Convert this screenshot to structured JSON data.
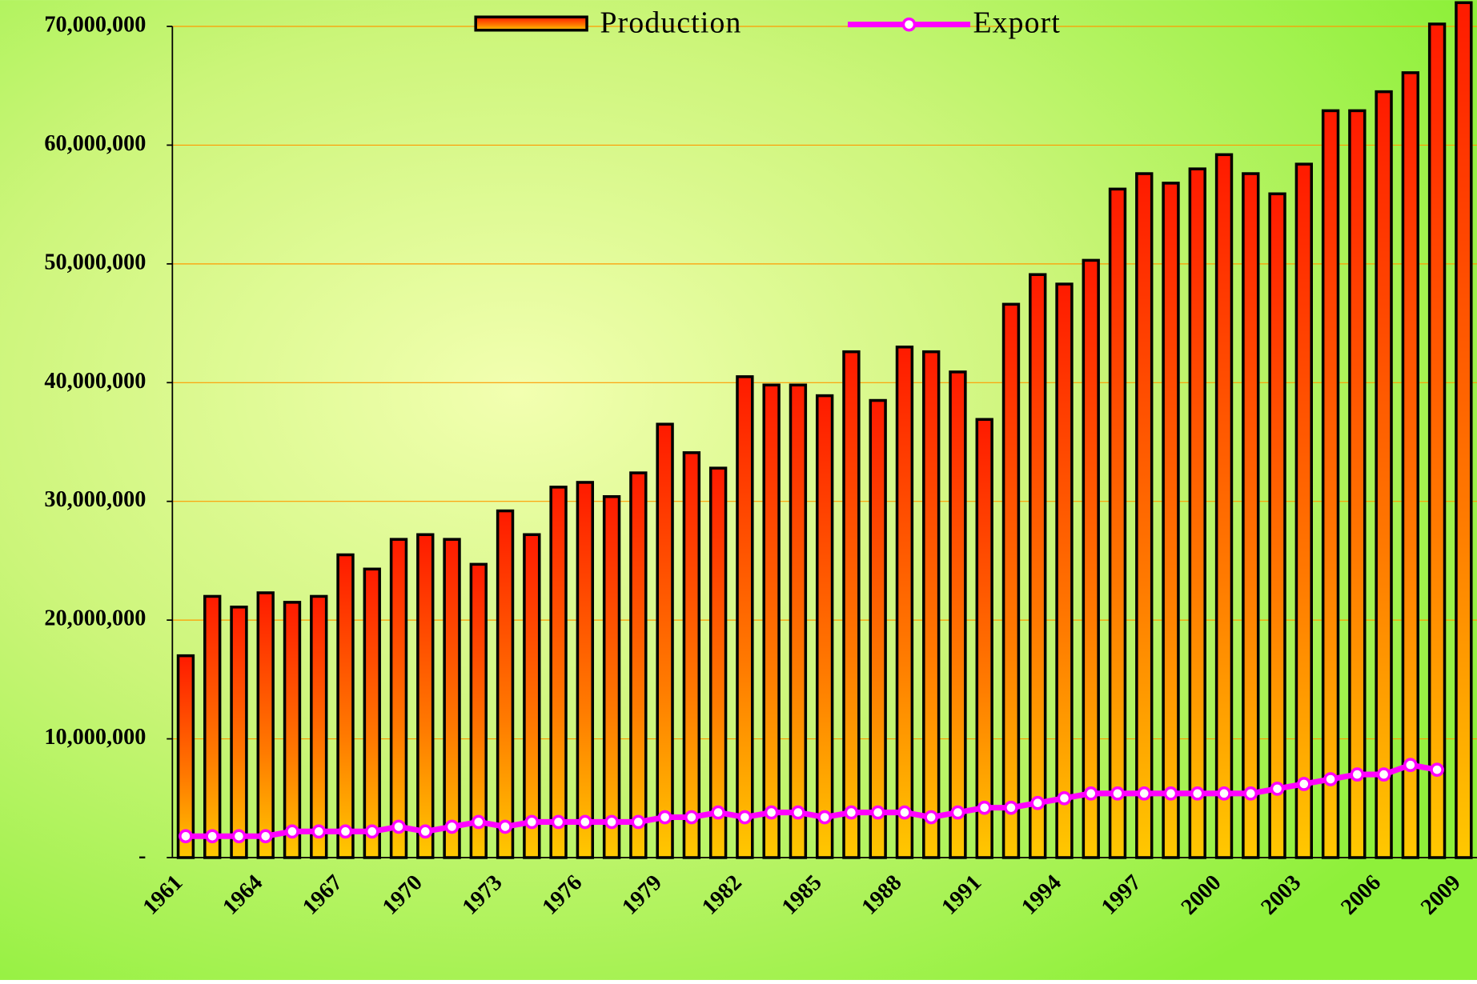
{
  "chart_data": {
    "type": "bar",
    "categories": [
      "1961",
      null,
      null,
      "1964",
      null,
      null,
      "1967",
      null,
      null,
      "1970",
      null,
      null,
      "1973",
      null,
      null,
      "1976",
      null,
      null,
      "1979",
      null,
      null,
      "1982",
      null,
      null,
      "1985",
      null,
      null,
      "1988",
      null,
      null,
      "1991",
      null,
      null,
      "1994",
      null,
      null,
      "1997",
      null,
      null,
      "2000",
      null,
      null,
      "2003",
      null,
      null,
      "2006",
      null,
      null,
      "2009"
    ],
    "series": [
      {
        "name": "Production",
        "type": "bar",
        "color": "#ff2000",
        "values": [
          17000000,
          22000000,
          21100000,
          22300000,
          21500000,
          22000000,
          25500000,
          24300000,
          26800000,
          27200000,
          26800000,
          24700000,
          29200000,
          27200000,
          31200000,
          31600000,
          30400000,
          32400000,
          36500000,
          34100000,
          32800000,
          40500000,
          39800000,
          39800000,
          38900000,
          42600000,
          38500000,
          43000000,
          42600000,
          40900000,
          36900000,
          46600000,
          49100000,
          48300000,
          50300000,
          56300000,
          57600000,
          56800000,
          58000000,
          59200000,
          57600000,
          55900000,
          58400000,
          62900000,
          62900000,
          64500000,
          66100000,
          70200000,
          72000000
        ]
      },
      {
        "name": "Export",
        "type": "line",
        "color": "#ff00ff",
        "values": [
          1800000,
          1800000,
          1800000,
          1800000,
          2200000,
          2200000,
          2200000,
          2200000,
          2600000,
          2200000,
          2600000,
          3000000,
          2600000,
          3000000,
          3000000,
          3000000,
          3000000,
          3000000,
          3400000,
          3400000,
          3800000,
          3400000,
          3800000,
          3800000,
          3400000,
          3800000,
          3800000,
          3800000,
          3400000,
          3800000,
          4200000,
          4200000,
          4600000,
          5000000,
          5400000,
          5400000,
          5400000,
          5400000,
          5400000,
          5400000,
          5400000,
          5800000,
          6200000,
          6600000,
          7000000,
          7000000,
          7800000,
          7400000,
          null
        ]
      }
    ],
    "ylim": [
      0,
      70000000
    ],
    "yticks": [
      {
        "value": 0,
        "label": "-"
      },
      {
        "value": 10000000,
        "label": "10,000,000"
      },
      {
        "value": 20000000,
        "label": "20,000,000"
      },
      {
        "value": 30000000,
        "label": "30,000,000"
      },
      {
        "value": 40000000,
        "label": "40,000,000"
      },
      {
        "value": 50000000,
        "label": "50,000,000"
      },
      {
        "value": 60000000,
        "label": "60,000,000"
      },
      {
        "value": 70000000,
        "label": "70,000,000"
      }
    ],
    "grid": true,
    "legend": "top"
  }
}
